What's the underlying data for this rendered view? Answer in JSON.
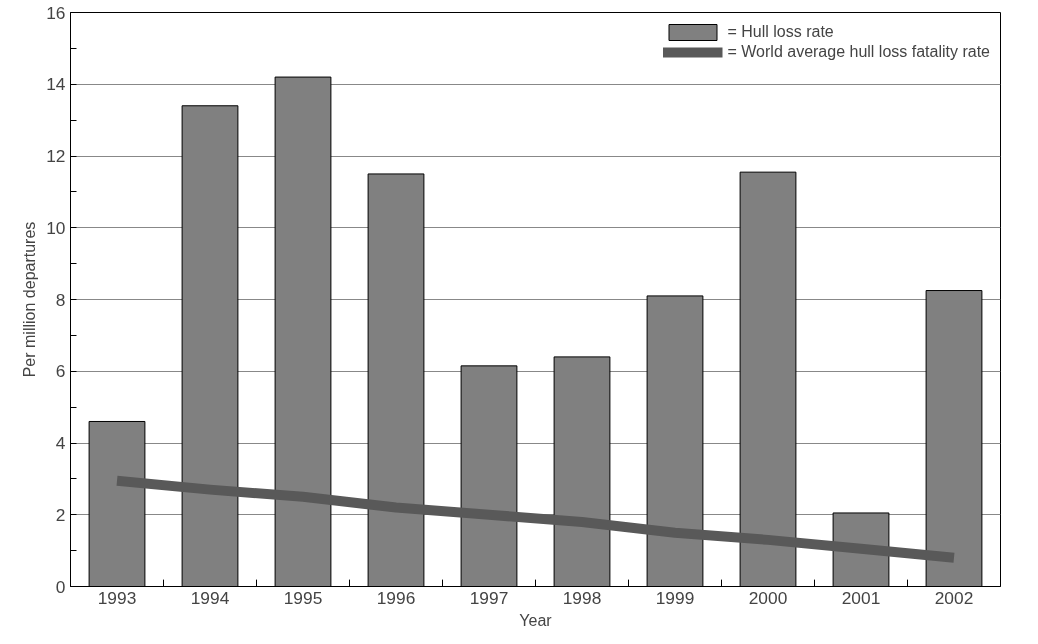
{
  "chart_data": {
    "type": "bar",
    "xlabel": "Year",
    "ylabel": "Per million departures",
    "categories": [
      "1993",
      "1994",
      "1995",
      "1996",
      "1997",
      "1998",
      "1999",
      "2000",
      "2001",
      "2002"
    ],
    "series": [
      {
        "name": "= Hull loss rate",
        "color": "#808080",
        "values": [
          4.6,
          13.4,
          14.2,
          11.5,
          6.15,
          6.4,
          8.1,
          11.55,
          2.05,
          8.25
        ]
      },
      {
        "name": "= World average hull loss fatality rate",
        "type": "line",
        "color": "#595959",
        "values": [
          2.95,
          2.7,
          2.5,
          2.2,
          2.0,
          1.8,
          1.5,
          1.3,
          1.05,
          0.8
        ]
      }
    ],
    "ylim": [
      0,
      16
    ],
    "yticks": [
      0,
      2,
      4,
      6,
      8,
      10,
      12,
      14,
      16
    ],
    "grid": "y",
    "legend": "top right"
  }
}
